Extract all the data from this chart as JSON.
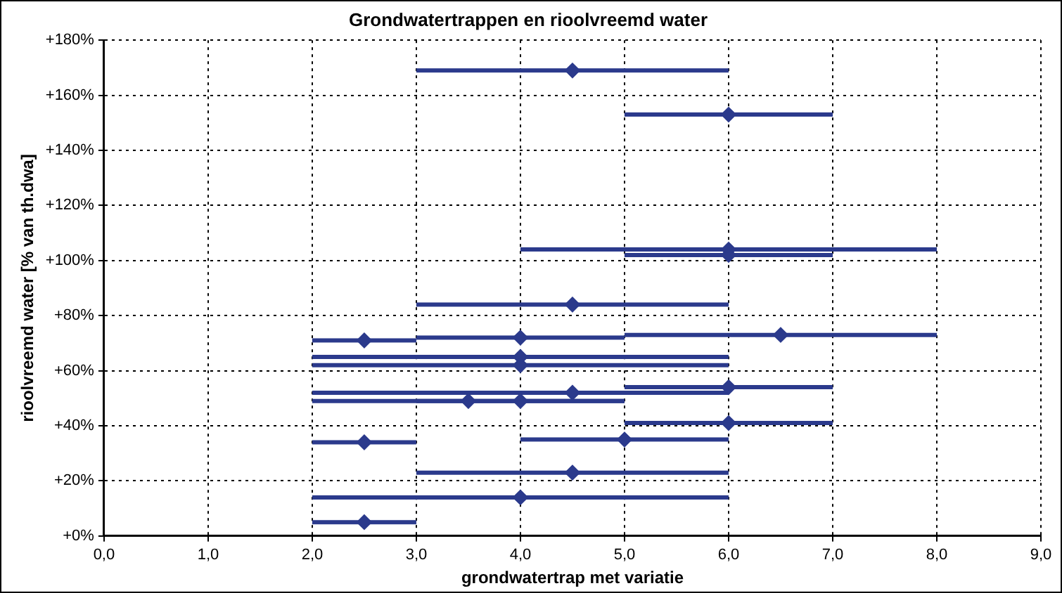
{
  "chart_data": {
    "type": "scatter",
    "title": "Grondwatertrappen en rioolvreemd water",
    "xlabel": "grondwatertrap met variatie",
    "ylabel": "rioolvreemd water [% van th.dwa]",
    "xlim": [
      0,
      9
    ],
    "ylim": [
      0,
      180
    ],
    "xticks": [
      {
        "value": 0,
        "label": "0,0"
      },
      {
        "value": 1,
        "label": "1,0"
      },
      {
        "value": 2,
        "label": "2,0"
      },
      {
        "value": 3,
        "label": "3,0"
      },
      {
        "value": 4,
        "label": "4,0"
      },
      {
        "value": 5,
        "label": "5,0"
      },
      {
        "value": 6,
        "label": "6,0"
      },
      {
        "value": 7,
        "label": "7,0"
      },
      {
        "value": 8,
        "label": "8,0"
      },
      {
        "value": 9,
        "label": "9,0"
      }
    ],
    "yticks": [
      {
        "value": 0,
        "label": "+0%"
      },
      {
        "value": 20,
        "label": "+20%"
      },
      {
        "value": 40,
        "label": "+40%"
      },
      {
        "value": 60,
        "label": "+60%"
      },
      {
        "value": 80,
        "label": "+80%"
      },
      {
        "value": 100,
        "label": "+100%"
      },
      {
        "value": 120,
        "label": "+120%"
      },
      {
        "value": 140,
        "label": "+140%"
      },
      {
        "value": 160,
        "label": "+160%"
      },
      {
        "value": 180,
        "label": "+180%"
      }
    ],
    "grid": true,
    "legend": false,
    "marker": "diamond",
    "series": [
      {
        "color": "#2b3a8c",
        "x": [
          4.5,
          6,
          6,
          6,
          4.5,
          2.5,
          4,
          6.5,
          4,
          4,
          4.5,
          6,
          3.5,
          4,
          6,
          5,
          2.5,
          4.5,
          4,
          2.5
        ],
        "values": [
          169,
          153,
          104,
          102,
          84,
          71,
          72,
          73,
          65,
          62,
          52,
          54,
          49,
          49,
          41,
          35,
          34,
          23,
          14,
          5
        ],
        "xerrors": [
          [
            3,
            6
          ],
          [
            5,
            7
          ],
          [
            4,
            8
          ],
          [
            5,
            7
          ],
          [
            3,
            6
          ],
          [
            2,
            3
          ],
          [
            3,
            5
          ],
          [
            5,
            8
          ],
          [
            2,
            6
          ],
          [
            2,
            6
          ],
          [
            2,
            6
          ],
          [
            5,
            7
          ],
          [
            2,
            5
          ],
          [
            3,
            5
          ],
          [
            5,
            7
          ],
          [
            4,
            6
          ],
          [
            2,
            3
          ],
          [
            3,
            6
          ],
          [
            2,
            6
          ],
          [
            2,
            3
          ]
        ]
      }
    ]
  }
}
